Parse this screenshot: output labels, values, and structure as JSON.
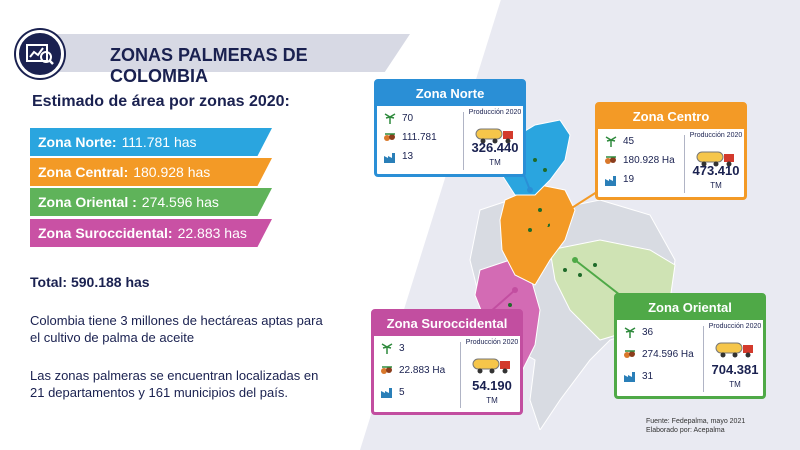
{
  "title": "ZONAS PALMERAS DE COLOMBIA",
  "subtitle": "Estimado de área por zonas 2020:",
  "zones": [
    {
      "name": "Zona Norte:",
      "value": "111.781 has",
      "color": "#2aa5df"
    },
    {
      "name": "Zona Central:",
      "value": "180.928 has",
      "color": "#f39a26"
    },
    {
      "name": "Zona Oriental :",
      "value": "274.596 has",
      "color": "#5fb35a"
    },
    {
      "name": "Zona Suroccidental:",
      "value": "22.883 has",
      "color": "#c951a4"
    }
  ],
  "total": "Total: 590.188 has",
  "para1": "Colombia tiene 3 millones de hectáreas aptas para el cultivo de palma de aceite",
  "para2": "Las zonas palmeras se encuentran localizadas en 21 departamentos y 161 municipios del país.",
  "cards": {
    "norte": {
      "title": "Zona Norte",
      "count": "70",
      "area": "111.781",
      "plants": "13",
      "prod_label": "Producción 2020",
      "prod": "326.440",
      "unit": "TM",
      "color": "#2a8fd6"
    },
    "centro": {
      "title": "Zona Centro",
      "count": "45",
      "area": "180.928 Ha",
      "plants": "19",
      "prod_label": "Producción 2020",
      "prod": "473.410",
      "unit": "TM",
      "color": "#f39a26"
    },
    "oriental": {
      "title": "Zona Oriental",
      "count": "36",
      "area": "274.596 Ha",
      "plants": "31",
      "prod_label": "Producción 2020",
      "prod": "704.381",
      "unit": "TM",
      "color": "#4fa947"
    },
    "sur": {
      "title": "Zona Suroccidental",
      "count": "3",
      "area": "22.883 Ha",
      "plants": "5",
      "prod_label": "Producción 2020",
      "prod": "54.190",
      "unit": "TM",
      "color": "#c24ea0"
    }
  },
  "source": "Fuente: Fedepalma, mayo 2021",
  "author": "Elaborado por: Acepalma",
  "icons": [
    "analytics-icon",
    "palm-tree-icon",
    "palm-fruit-icon",
    "factory-icon",
    "tanker-truck-icon"
  ]
}
